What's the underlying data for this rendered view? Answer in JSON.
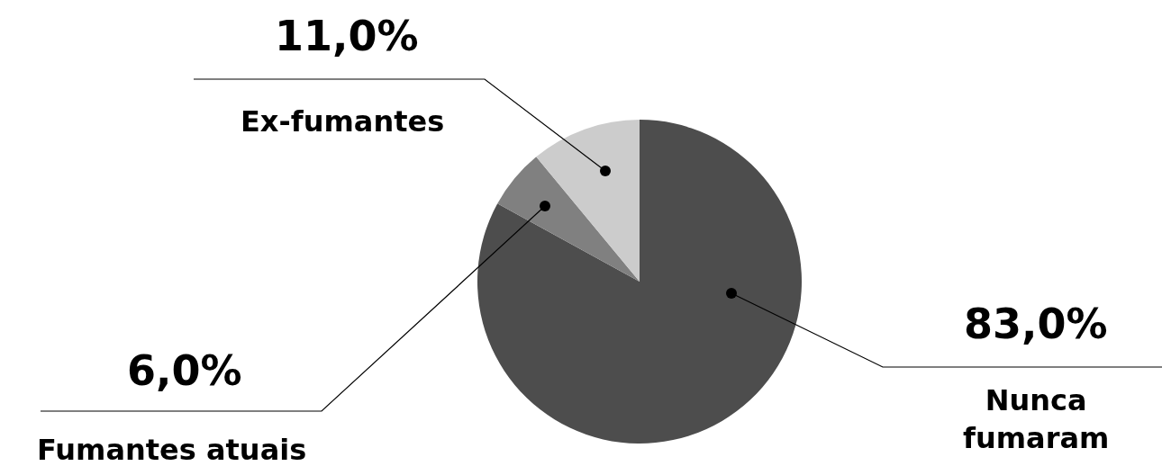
{
  "chart_data": {
    "type": "pie",
    "categories": [
      "Nunca fumaram",
      "Fumantes atuais",
      "Ex-fumantes"
    ],
    "values": [
      83,
      6,
      11
    ],
    "colors": [
      "#4d4d4d",
      "#808080",
      "#cccccc"
    ],
    "value_labels": [
      "83,0%",
      "6,0%",
      "11,0%"
    ],
    "legend": false
  }
}
